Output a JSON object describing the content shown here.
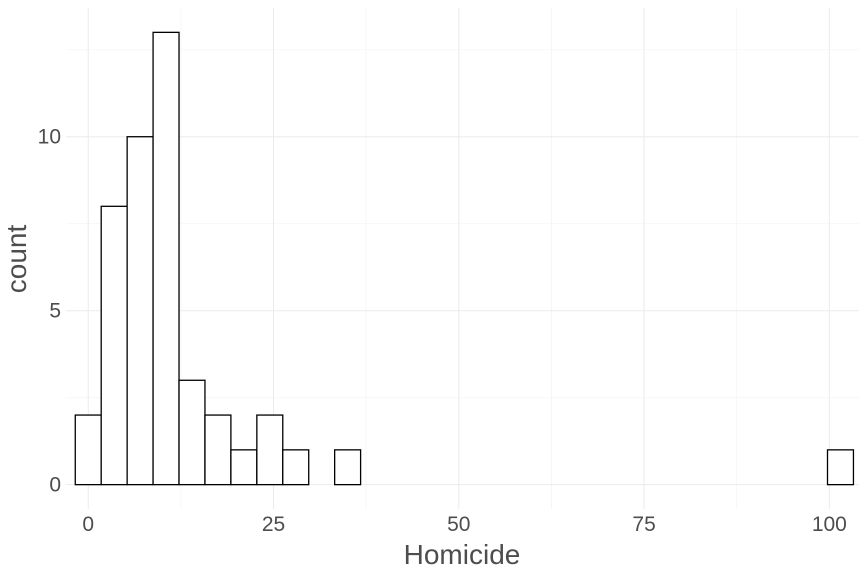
{
  "chart_data": {
    "type": "bar",
    "title": "",
    "xlabel": "Homicide",
    "ylabel": "count",
    "xlim": [
      -3,
      104
    ],
    "ylim": [
      -0.7,
      13.7
    ],
    "x_ticks": [
      0,
      25,
      50,
      75,
      100
    ],
    "y_ticks": [
      0,
      5,
      10
    ],
    "bin_width": 3.5,
    "bins": [
      {
        "start": -1.75,
        "end": 1.75,
        "count": 2
      },
      {
        "start": 1.75,
        "end": 5.25,
        "count": 8
      },
      {
        "start": 5.25,
        "end": 8.75,
        "count": 10
      },
      {
        "start": 8.75,
        "end": 12.25,
        "count": 13
      },
      {
        "start": 12.25,
        "end": 15.75,
        "count": 3
      },
      {
        "start": 15.75,
        "end": 19.25,
        "count": 2
      },
      {
        "start": 19.25,
        "end": 22.75,
        "count": 1
      },
      {
        "start": 22.75,
        "end": 26.25,
        "count": 2
      },
      {
        "start": 26.25,
        "end": 29.75,
        "count": 1
      },
      {
        "start": 29.75,
        "end": 33.25,
        "count": 0
      },
      {
        "start": 33.25,
        "end": 36.75,
        "count": 1
      },
      {
        "start": 36.75,
        "end": 40.25,
        "count": 0
      },
      {
        "start": 40.25,
        "end": 43.75,
        "count": 0
      },
      {
        "start": 43.75,
        "end": 47.25,
        "count": 0
      },
      {
        "start": 47.25,
        "end": 50.75,
        "count": 0
      },
      {
        "start": 50.75,
        "end": 54.25,
        "count": 0
      },
      {
        "start": 54.25,
        "end": 57.75,
        "count": 0
      },
      {
        "start": 57.75,
        "end": 61.25,
        "count": 0
      },
      {
        "start": 61.25,
        "end": 64.75,
        "count": 0
      },
      {
        "start": 64.75,
        "end": 68.25,
        "count": 0
      },
      {
        "start": 68.25,
        "end": 71.75,
        "count": 0
      },
      {
        "start": 71.75,
        "end": 75.25,
        "count": 0
      },
      {
        "start": 75.25,
        "end": 78.75,
        "count": 0
      },
      {
        "start": 78.75,
        "end": 82.25,
        "count": 0
      },
      {
        "start": 82.25,
        "end": 85.75,
        "count": 0
      },
      {
        "start": 85.75,
        "end": 89.25,
        "count": 0
      },
      {
        "start": 89.25,
        "end": 92.75,
        "count": 0
      },
      {
        "start": 92.75,
        "end": 96.25,
        "count": 0
      },
      {
        "start": 96.25,
        "end": 99.75,
        "count": 0
      },
      {
        "start": 99.75,
        "end": 103.25,
        "count": 1
      }
    ],
    "grid": true,
    "legend": "none",
    "colors": {
      "bar_fill": "#ffffff",
      "bar_outline": "#000000"
    }
  }
}
